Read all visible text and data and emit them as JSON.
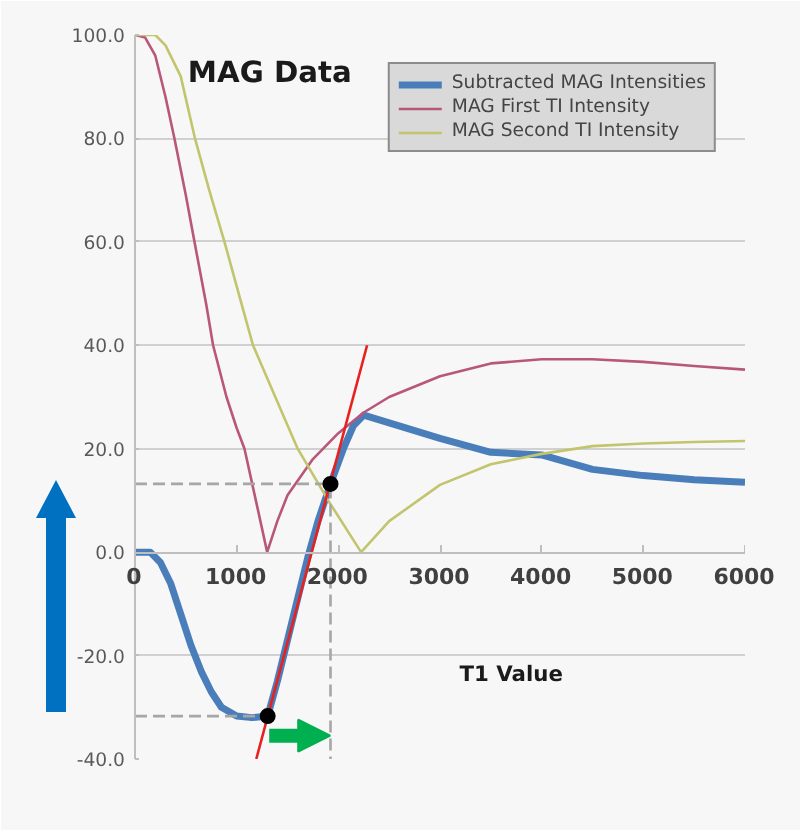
{
  "chart_data": {
    "type": "line",
    "title": "MAG Data",
    "xlabel": "T1 Value",
    "xlim": [
      0,
      6000
    ],
    "ylim": [
      -40,
      100
    ],
    "xticks": [
      0,
      1000,
      2000,
      3000,
      4000,
      5000,
      6000
    ],
    "yticks": [
      {
        "value": -40,
        "label": "-40.0"
      },
      {
        "value": -20,
        "label": "-20.0"
      },
      {
        "value": 0,
        "label": "0.0"
      },
      {
        "value": 20,
        "label": "20.0"
      },
      {
        "value": 40,
        "label": "40.0"
      },
      {
        "value": 60,
        "label": "60.0"
      },
      {
        "value": 80,
        "label": "80.0"
      },
      {
        "value": 100,
        "label": "100.0"
      }
    ],
    "grid": "y",
    "legend": "top right",
    "marker": "none",
    "line_style": "solid",
    "series": [
      {
        "name": "Subtracted MAG Intensities",
        "color": "#4a7ebb",
        "x": [
          0,
          150,
          250,
          350,
          450,
          550,
          650,
          750,
          850,
          1000,
          1150,
          1305,
          1400,
          1500,
          1600,
          1700,
          1800,
          1923,
          2050,
          2150,
          2250,
          2500,
          3000,
          3500,
          4000,
          4500,
          5000,
          5500,
          6000
        ],
        "values": [
          0,
          0,
          -2,
          -6,
          -12,
          -18,
          -23,
          -27,
          -30,
          -31.7,
          -32,
          -31.7,
          -25,
          -17,
          -9,
          -1,
          6,
          13.2,
          20,
          24.5,
          26.5,
          25,
          22,
          19.3,
          18.8,
          16,
          14.8,
          14,
          13.5
        ]
      },
      {
        "name": "MAG First TI Intensity",
        "color": "#b8577a",
        "x": [
          0,
          100,
          200,
          300,
          388,
          500,
          585,
          700,
          768,
          900,
          1000,
          1077,
          1200,
          1300,
          1400,
          1500,
          1750,
          2000,
          2250,
          2500,
          3000,
          3500,
          4000,
          4500,
          5000,
          5500,
          6000
        ],
        "values": [
          100,
          99.5,
          96,
          88,
          80,
          69,
          60,
          48,
          40,
          30,
          24,
          20,
          9,
          0,
          6,
          11,
          18,
          23,
          27,
          30,
          34,
          36.5,
          37.3,
          37.3,
          36.8,
          36,
          35.3
        ]
      },
      {
        "name": "MAG Second TI Intensity",
        "color": "#c3c46e",
        "x": [
          0,
          200,
          300,
          450,
          590,
          730,
          880,
          1020,
          1161,
          1380,
          1600,
          1900,
          2224,
          2500,
          3000,
          3500,
          4000,
          4500,
          5000,
          5500,
          6000
        ],
        "values": [
          100,
          100,
          98,
          92,
          80,
          70,
          60,
          50,
          40,
          30,
          20,
          10,
          0,
          6,
          13,
          17,
          19,
          20.5,
          21,
          21.3,
          21.5
        ]
      },
      {
        "color": "#e8211f",
        "x": [
          1193,
          2283
        ],
        "values": [
          -40,
          40
        ]
      },
      {
        "color": "#a6a6a6",
        "line_style": "dashed",
        "x": [
          0,
          1923,
          1923
        ],
        "values": [
          13.2,
          13.2,
          -40
        ]
      },
      {
        "color": "#a6a6a6",
        "line_style": "dashed",
        "x": [
          0,
          1305
        ],
        "values": [
          -31.7,
          -31.7
        ]
      },
      {
        "type": "scatter",
        "marker": "circle",
        "color": "#000000",
        "x": [
          1305,
          1923
        ],
        "values": [
          -31.7,
          13.2
        ]
      }
    ]
  }
}
